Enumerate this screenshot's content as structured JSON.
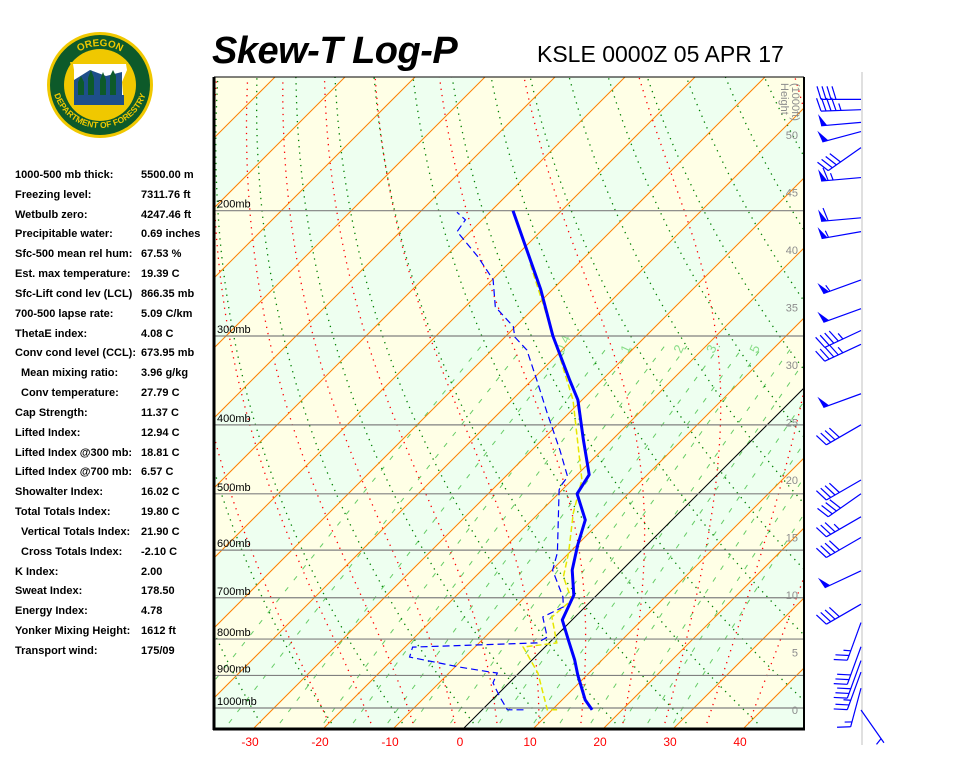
{
  "logo": {
    "top_text": "OREGON",
    "bottom_text": "DEPARTMENT OF FORESTRY"
  },
  "header": {
    "title": "Skew-T Log-P",
    "station": "KSLE 0000Z 05 APR 17"
  },
  "stats": [
    {
      "label": "1000-500 mb thick:",
      "value": "5500.00 m"
    },
    {
      "label": "Freezing level:",
      "value": "7311.76 ft"
    },
    {
      "label": "Wetbulb zero:",
      "value": "4247.46 ft"
    },
    {
      "label": "Precipitable water:",
      "value": "0.69 inches"
    },
    {
      "label": "Sfc-500 mean rel hum:",
      "value": "67.53 %"
    },
    {
      "label": "Est. max temperature:",
      "value": "19.39 C"
    },
    {
      "label": "Sfc-Lift cond lev (LCL)",
      "value": "866.35 mb"
    },
    {
      "label": "700-500 lapse rate:",
      "value": "5.09 C/km"
    },
    {
      "label": "ThetaE index:",
      "value": "4.08 C"
    },
    {
      "label": "Conv cond level (CCL):",
      "value": "673.95 mb"
    },
    {
      "label": "Mean mixing ratio:",
      "value": "3.96 g/kg",
      "indent": true
    },
    {
      "label": "Conv temperature:",
      "value": "27.79 C",
      "indent": true
    },
    {
      "label": "Cap Strength:",
      "value": "11.37 C"
    },
    {
      "label": "Lifted Index:",
      "value": "12.94 C"
    },
    {
      "label": "Lifted Index @300 mb:",
      "value": "18.81 C"
    },
    {
      "label": "Lifted Index @700 mb:",
      "value": "6.57 C"
    },
    {
      "label": "Showalter Index:",
      "value": "16.02 C"
    },
    {
      "label": "Total Totals Index:",
      "value": "19.80 C"
    },
    {
      "label": "Vertical Totals Index:",
      "value": "21.90 C",
      "indent": true
    },
    {
      "label": "Cross Totals Index:",
      "value": "-2.10 C",
      "indent": true
    },
    {
      "label": "K Index:",
      "value": "2.00"
    },
    {
      "label": "Sweat Index:",
      "value": "178.50"
    },
    {
      "label": "Energy Index:",
      "value": "4.78"
    },
    {
      "label": "Yonker Mixing Height:",
      "value": "1612 ft"
    },
    {
      "label": "Transport wind:",
      "value": "175/09"
    }
  ],
  "chart_data": {
    "type": "skew-t",
    "title": "Skew-T Log-P",
    "subtitle": "KSLE 0000Z 05 APR 17",
    "temperature_ticks": [
      -30,
      -20,
      -10,
      0,
      10,
      20,
      30,
      40
    ],
    "temperature_unit": "C",
    "pressure_levels": [
      {
        "p": 200,
        "label": "200mb"
      },
      {
        "p": 300,
        "label": "300mb"
      },
      {
        "p": 400,
        "label": "400mb"
      },
      {
        "p": 500,
        "label": "500mb"
      },
      {
        "p": 600,
        "label": "600mb"
      },
      {
        "p": 700,
        "label": "700mb"
      },
      {
        "p": 800,
        "label": "800mb"
      },
      {
        "p": 900,
        "label": "900mb"
      },
      {
        "p": 1000,
        "label": "1000mb"
      }
    ],
    "height_axis": {
      "title_line1": "Height",
      "title_line2": "(1000ft)",
      "ticks": [
        0,
        5,
        10,
        15,
        20,
        25,
        30,
        35,
        40,
        45,
        50
      ]
    },
    "mixing_ratio_labels": [
      "0.4",
      "1",
      "2",
      "3",
      "5"
    ],
    "colors": {
      "temperature": "#0000ff",
      "dewpoint": "#0000ff",
      "parcel": "#e6e600",
      "isotherm": "#ff8000",
      "zero_isotherm": "#000000",
      "dry_adiabat": "#008000",
      "moist_adiabat": "#ff0000",
      "mixing_ratio": "#66cc66",
      "band_warm": "#ffffe6",
      "band_cool": "#eefff0",
      "wind": "#0000ff"
    },
    "temperature": [
      [
        1006,
        15.7
      ],
      [
        974,
        13.3
      ],
      [
        899,
        8.7
      ],
      [
        856,
        6.1
      ],
      [
        802,
        2.3
      ],
      [
        752,
        -1.4
      ],
      [
        694,
        -3.3
      ],
      [
        640,
        -7.1
      ],
      [
        590,
        -9.9
      ],
      [
        544,
        -12.4
      ],
      [
        500,
        -17.3
      ],
      [
        470,
        -18.3
      ],
      [
        420,
        -24.1
      ],
      [
        369,
        -30.6
      ],
      [
        346,
        -34.6
      ],
      [
        300,
        -43.3
      ],
      [
        258,
        -51.7
      ],
      [
        200,
        -66.9
      ]
    ],
    "dewpoint": [
      [
        1006,
        5.9
      ],
      [
        1006,
        3.6
      ],
      [
        965,
        0.7
      ],
      [
        922,
        -2.3
      ],
      [
        893,
        -3.1
      ],
      [
        890,
        -4.3
      ],
      [
        876,
        -9.3
      ],
      [
        848,
        -17.9
      ],
      [
        821,
        -18.9
      ],
      [
        810,
        -1.7
      ],
      [
        795,
        -1.1
      ],
      [
        745,
        -4.6
      ],
      [
        721,
        -3.1
      ],
      [
        698,
        -4.6
      ],
      [
        640,
        -9.9
      ],
      [
        605,
        -11.7
      ],
      [
        494,
        -20.4
      ],
      [
        489,
        -20.7
      ],
      [
        473,
        -21.1
      ],
      [
        434,
        -26.0
      ],
      [
        385,
        -33.1
      ],
      [
        346,
        -39.3
      ],
      [
        314,
        -45.0
      ],
      [
        301,
        -48.6
      ],
      [
        291,
        -50.3
      ],
      [
        273,
        -55.7
      ],
      [
        250,
        -59.9
      ],
      [
        232,
        -65.4
      ],
      [
        214,
        -71.9
      ],
      [
        206,
        -72.4
      ],
      [
        201,
        -74.7
      ]
    ],
    "parcel": [
      [
        1006,
        10.7
      ],
      [
        1006,
        9.3
      ],
      [
        893,
        2.7
      ],
      [
        821,
        -3.1
      ],
      [
        810,
        1.1
      ],
      [
        745,
        -3.3
      ],
      [
        705,
        -2.9
      ],
      [
        654,
        -7.4
      ],
      [
        605,
        -10.1
      ],
      [
        532,
        -15.1
      ],
      [
        478,
        -18.6
      ],
      [
        369,
        -31.3
      ],
      [
        291,
        -45.0
      ],
      [
        237,
        -57.0
      ]
    ],
    "winds": [
      {
        "height_kft": 53.1,
        "dir": 270,
        "speed": 40
      },
      {
        "height_kft": 52.2,
        "dir": 268,
        "speed": 45
      },
      {
        "height_kft": 51.1,
        "dir": 265,
        "speed": 50
      },
      {
        "height_kft": 50.3,
        "dir": 255,
        "speed": 50
      },
      {
        "height_kft": 48.9,
        "dir": 235,
        "speed": 40
      },
      {
        "height_kft": 46.3,
        "dir": 265,
        "speed": 65
      },
      {
        "height_kft": 42.8,
        "dir": 265,
        "speed": 60
      },
      {
        "height_kft": 41.6,
        "dir": 260,
        "speed": 55
      },
      {
        "height_kft": 37.4,
        "dir": 250,
        "speed": 55
      },
      {
        "height_kft": 34.9,
        "dir": 250,
        "speed": 50
      },
      {
        "height_kft": 33.0,
        "dir": 245,
        "speed": 45
      },
      {
        "height_kft": 31.8,
        "dir": 245,
        "speed": 45
      },
      {
        "height_kft": 27.5,
        "dir": 250,
        "speed": 50
      },
      {
        "height_kft": 24.8,
        "dir": 240,
        "speed": 40
      },
      {
        "height_kft": 20.0,
        "dir": 240,
        "speed": 40
      },
      {
        "height_kft": 18.8,
        "dir": 235,
        "speed": 40
      },
      {
        "height_kft": 16.8,
        "dir": 240,
        "speed": 35
      },
      {
        "height_kft": 15.0,
        "dir": 240,
        "speed": 40
      },
      {
        "height_kft": 12.1,
        "dir": 245,
        "speed": 50
      },
      {
        "height_kft": 9.2,
        "dir": 240,
        "speed": 40
      },
      {
        "height_kft": 7.6,
        "dir": 200,
        "speed": 25
      },
      {
        "height_kft": 5.5,
        "dir": 200,
        "speed": 30
      },
      {
        "height_kft": 4.3,
        "dir": 200,
        "speed": 30
      },
      {
        "height_kft": 3.3,
        "dir": 200,
        "speed": 25
      },
      {
        "height_kft": 1.9,
        "dir": 195,
        "speed": 15
      },
      {
        "height_kft": 0,
        "dir": 145,
        "speed": 5
      }
    ]
  }
}
